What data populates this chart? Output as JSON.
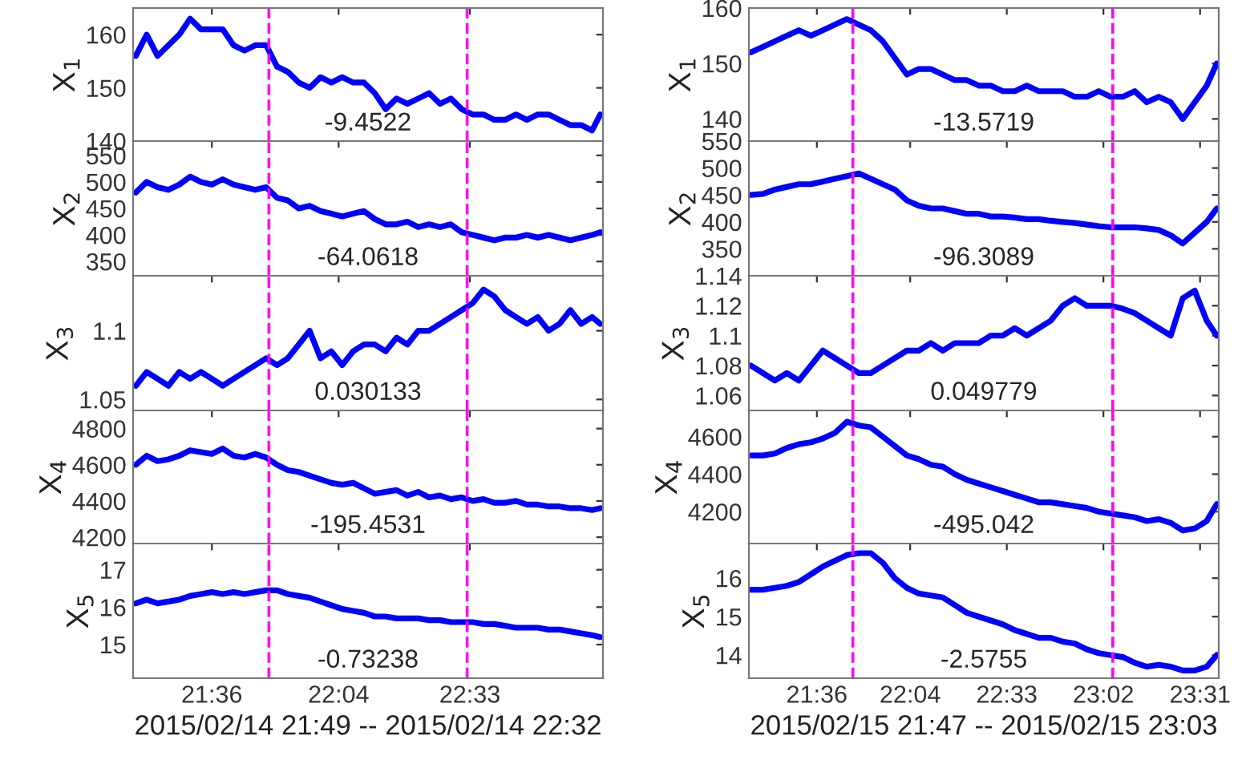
{
  "chart_data": [
    {
      "type": "line",
      "ylabel": "X$_{1}$",
      "x": [
        21.32,
        21.36,
        21.4,
        21.44,
        21.48,
        21.52,
        21.56,
        21.6,
        21.64,
        21.68,
        21.72,
        21.76,
        21.8,
        21.84,
        21.88,
        21.92,
        21.96,
        22.0,
        22.04,
        22.08,
        22.12,
        22.16,
        22.2,
        22.24,
        22.28,
        22.32,
        22.36,
        22.4,
        22.44,
        22.48,
        22.52,
        22.56,
        22.6,
        22.64,
        22.68,
        22.72,
        22.76,
        22.8,
        22.84,
        22.88,
        22.92,
        22.96,
        23.0,
        23.03
      ],
      "series": [
        {
          "color": "#0000ff",
          "values": [
            156,
            160,
            156,
            158,
            160,
            163,
            161,
            161,
            161,
            158,
            157,
            158,
            158,
            154,
            153,
            151,
            150,
            152,
            151,
            152,
            151,
            151,
            149,
            146,
            148,
            147,
            148,
            149,
            147,
            148,
            146,
            145,
            145,
            144,
            144,
            145,
            144,
            145,
            145,
            144,
            143,
            143,
            142,
            145
          ]
        }
      ],
      "xlim": [
        21.31,
        23.04
      ],
      "xticks": [
        {
          "value": 21.6,
          "label": null
        },
        {
          "value": 22.0667,
          "label": null
        },
        {
          "value": 22.55,
          "label": null
        }
      ],
      "ylim": [
        140,
        165
      ],
      "yticks": [
        140,
        150,
        160
      ],
      "tick_labels": "y",
      "line_style": "solid",
      "grid": false,
      "ref_lines": [
        {
          "axis": "x",
          "value": 21.81,
          "color": "#ff00ff",
          "line_style": "dashed"
        },
        {
          "axis": "x",
          "value": 22.54,
          "color": "#ff00ff",
          "line_style": "dashed"
        }
      ],
      "annotations": [
        "-9.4522"
      ]
    },
    {
      "type": "line",
      "ylabel": "X$_{2}$",
      "x": [
        21.32,
        21.36,
        21.4,
        21.44,
        21.48,
        21.52,
        21.56,
        21.6,
        21.64,
        21.68,
        21.72,
        21.76,
        21.8,
        21.84,
        21.88,
        21.92,
        21.96,
        22.0,
        22.04,
        22.08,
        22.12,
        22.16,
        22.2,
        22.24,
        22.28,
        22.32,
        22.36,
        22.4,
        22.44,
        22.48,
        22.52,
        22.56,
        22.6,
        22.64,
        22.68,
        22.72,
        22.76,
        22.8,
        22.84,
        22.88,
        22.92,
        22.96,
        23.0,
        23.03
      ],
      "series": [
        {
          "color": "#0000ff",
          "values": [
            480,
            500,
            490,
            485,
            495,
            510,
            500,
            495,
            505,
            495,
            490,
            485,
            490,
            470,
            465,
            450,
            455,
            445,
            440,
            435,
            440,
            445,
            430,
            420,
            420,
            425,
            415,
            420,
            415,
            420,
            405,
            400,
            395,
            390,
            395,
            395,
            400,
            395,
            400,
            395,
            390,
            395,
            400,
            405
          ]
        }
      ],
      "xlim": [
        21.31,
        23.04
      ],
      "xticks": [
        {
          "value": 21.6,
          "label": null
        },
        {
          "value": 22.0667,
          "label": null
        },
        {
          "value": 22.55,
          "label": null
        }
      ],
      "ylim": [
        323,
        577
      ],
      "yticks": [
        350,
        400,
        450,
        500,
        550
      ],
      "tick_labels": "y",
      "line_style": "solid",
      "grid": false,
      "ref_lines": [
        {
          "axis": "x",
          "value": 21.81,
          "color": "#ff00ff",
          "line_style": "dashed"
        },
        {
          "axis": "x",
          "value": 22.54,
          "color": "#ff00ff",
          "line_style": "dashed"
        }
      ],
      "annotations": [
        "-64.0618"
      ]
    },
    {
      "type": "line",
      "ylabel": "X$_{3}$",
      "x": [
        21.32,
        21.36,
        21.4,
        21.44,
        21.48,
        21.52,
        21.56,
        21.6,
        21.64,
        21.68,
        21.72,
        21.76,
        21.8,
        21.84,
        21.88,
        21.92,
        21.96,
        22.0,
        22.04,
        22.08,
        22.12,
        22.16,
        22.2,
        22.24,
        22.28,
        22.32,
        22.36,
        22.4,
        22.44,
        22.48,
        22.52,
        22.56,
        22.6,
        22.64,
        22.68,
        22.72,
        22.76,
        22.8,
        22.84,
        22.88,
        22.92,
        22.96,
        23.0,
        23.03
      ],
      "series": [
        {
          "color": "#0000ff",
          "values": [
            1.06,
            1.07,
            1.065,
            1.06,
            1.07,
            1.065,
            1.07,
            1.065,
            1.06,
            1.065,
            1.07,
            1.075,
            1.08,
            1.075,
            1.08,
            1.09,
            1.1,
            1.08,
            1.085,
            1.075,
            1.085,
            1.09,
            1.09,
            1.085,
            1.095,
            1.09,
            1.1,
            1.1,
            1.105,
            1.11,
            1.115,
            1.12,
            1.13,
            1.125,
            1.115,
            1.11,
            1.105,
            1.11,
            1.1,
            1.105,
            1.115,
            1.105,
            1.11,
            1.105
          ]
        }
      ],
      "xlim": [
        21.31,
        23.04
      ],
      "xticks": [
        {
          "value": 21.6,
          "label": null
        },
        {
          "value": 22.0667,
          "label": null
        },
        {
          "value": 22.55,
          "label": null
        }
      ],
      "ylim": [
        1.042,
        1.14
      ],
      "yticks": [
        1.05,
        1.1
      ],
      "tick_labels": "y",
      "line_style": "solid",
      "grid": false,
      "ref_lines": [
        {
          "axis": "x",
          "value": 21.81,
          "color": "#ff00ff",
          "line_style": "dashed"
        },
        {
          "axis": "x",
          "value": 22.54,
          "color": "#ff00ff",
          "line_style": "dashed"
        }
      ],
      "annotations": [
        "0.030133"
      ]
    },
    {
      "type": "line",
      "ylabel": "X$_{4}$",
      "x": [
        21.32,
        21.36,
        21.4,
        21.44,
        21.48,
        21.52,
        21.56,
        21.6,
        21.64,
        21.68,
        21.72,
        21.76,
        21.8,
        21.84,
        21.88,
        21.92,
        21.96,
        22.0,
        22.04,
        22.08,
        22.12,
        22.16,
        22.2,
        22.24,
        22.28,
        22.32,
        22.36,
        22.4,
        22.44,
        22.48,
        22.52,
        22.56,
        22.6,
        22.64,
        22.68,
        22.72,
        22.76,
        22.8,
        22.84,
        22.88,
        22.92,
        22.96,
        23.0,
        23.03
      ],
      "series": [
        {
          "color": "#0000ff",
          "values": [
            4600,
            4650,
            4620,
            4630,
            4650,
            4680,
            4670,
            4660,
            4690,
            4650,
            4640,
            4660,
            4640,
            4600,
            4570,
            4560,
            4540,
            4520,
            4500,
            4490,
            4500,
            4470,
            4440,
            4450,
            4460,
            4430,
            4450,
            4420,
            4430,
            4410,
            4420,
            4400,
            4410,
            4390,
            4390,
            4400,
            4380,
            4380,
            4370,
            4370,
            4360,
            4360,
            4350,
            4360
          ]
        }
      ],
      "xlim": [
        21.31,
        23.04
      ],
      "xticks": [
        {
          "value": 21.6,
          "label": null
        },
        {
          "value": 22.0667,
          "label": null
        },
        {
          "value": 22.55,
          "label": null
        }
      ],
      "ylim": [
        4165,
        4900
      ],
      "yticks": [
        4200,
        4400,
        4600,
        4800
      ],
      "tick_labels": "y",
      "line_style": "solid",
      "grid": false,
      "ref_lines": [
        {
          "axis": "x",
          "value": 21.81,
          "color": "#ff00ff",
          "line_style": "dashed"
        },
        {
          "axis": "x",
          "value": 22.54,
          "color": "#ff00ff",
          "line_style": "dashed"
        }
      ],
      "annotations": [
        "-195.4531"
      ]
    },
    {
      "type": "line",
      "ylabel": "X$_{5}$",
      "xlabel": "2015/02/14 21:49 -- 2015/02/14 22:32",
      "x": [
        21.32,
        21.36,
        21.4,
        21.44,
        21.48,
        21.52,
        21.56,
        21.6,
        21.64,
        21.68,
        21.72,
        21.76,
        21.8,
        21.84,
        21.88,
        21.92,
        21.96,
        22.0,
        22.04,
        22.08,
        22.12,
        22.16,
        22.2,
        22.24,
        22.28,
        22.32,
        22.36,
        22.4,
        22.44,
        22.48,
        22.52,
        22.56,
        22.6,
        22.64,
        22.68,
        22.72,
        22.76,
        22.8,
        22.84,
        22.88,
        22.92,
        22.96,
        23.0,
        23.03
      ],
      "series": [
        {
          "color": "#0000ff",
          "values": [
            16.1,
            16.2,
            16.1,
            16.15,
            16.2,
            16.3,
            16.35,
            16.4,
            16.35,
            16.4,
            16.35,
            16.4,
            16.45,
            16.45,
            16.35,
            16.3,
            16.25,
            16.15,
            16.05,
            15.95,
            15.9,
            15.85,
            15.75,
            15.75,
            15.7,
            15.7,
            15.7,
            15.65,
            15.65,
            15.6,
            15.6,
            15.6,
            15.55,
            15.55,
            15.5,
            15.45,
            15.45,
            15.45,
            15.4,
            15.4,
            15.35,
            15.3,
            15.25,
            15.2
          ]
        }
      ],
      "xlim": [
        21.31,
        23.04
      ],
      "xticks": [
        {
          "value": 21.6,
          "label": "21:36"
        },
        {
          "value": 22.0667,
          "label": "22:04"
        },
        {
          "value": 22.55,
          "label": "22:33"
        }
      ],
      "ylim": [
        14.1,
        17.7
      ],
      "yticks": [
        15,
        16,
        17
      ],
      "line_style": "solid",
      "grid": false,
      "ref_lines": [
        {
          "axis": "x",
          "value": 21.81,
          "color": "#ff00ff",
          "line_style": "dashed"
        },
        {
          "axis": "x",
          "value": 22.54,
          "color": "#ff00ff",
          "line_style": "dashed"
        }
      ],
      "annotations": [
        "-0.73238"
      ]
    },
    {
      "type": "line",
      "ylabel": "X$_{1}$",
      "x": [
        21.27,
        21.33,
        21.39,
        21.45,
        21.51,
        21.57,
        21.63,
        21.69,
        21.75,
        21.81,
        21.87,
        21.93,
        21.99,
        22.05,
        22.11,
        22.17,
        22.23,
        22.29,
        22.35,
        22.41,
        22.47,
        22.53,
        22.59,
        22.65,
        22.71,
        22.77,
        22.83,
        22.89,
        22.95,
        23.01,
        23.07,
        23.13,
        23.19,
        23.25,
        23.31,
        23.37,
        23.43,
        23.49,
        23.55,
        23.6
      ],
      "series": [
        {
          "color": "#0000ff",
          "values": [
            152,
            153,
            154,
            155,
            156,
            155,
            156,
            157,
            158,
            157,
            156,
            154,
            151,
            148,
            149,
            149,
            148,
            147,
            147,
            146,
            146,
            145,
            145,
            146,
            145,
            145,
            145,
            144,
            144,
            145,
            144,
            144,
            145,
            143,
            144,
            143,
            140,
            143,
            146,
            150
          ]
        }
      ],
      "xlim": [
        21.26,
        23.61
      ],
      "xticks": [
        {
          "value": 21.6,
          "label": null
        },
        {
          "value": 22.0667,
          "label": null
        },
        {
          "value": 22.55,
          "label": null
        },
        {
          "value": 23.0333,
          "label": null
        },
        {
          "value": 23.5167,
          "label": null
        }
      ],
      "ylim": [
        136,
        160
      ],
      "yticks": [
        140,
        150,
        160
      ],
      "tick_labels": "y",
      "line_style": "solid",
      "grid": false,
      "ref_lines": [
        {
          "axis": "x",
          "value": 21.78,
          "color": "#ff00ff",
          "line_style": "dashed"
        },
        {
          "axis": "x",
          "value": 23.08,
          "color": "#ff00ff",
          "line_style": "dashed"
        }
      ],
      "annotations": [
        "-13.5719"
      ]
    },
    {
      "type": "line",
      "ylabel": "X$_{2}$",
      "x": [
        21.27,
        21.33,
        21.39,
        21.45,
        21.51,
        21.57,
        21.63,
        21.69,
        21.75,
        21.81,
        21.87,
        21.93,
        21.99,
        22.05,
        22.11,
        22.17,
        22.23,
        22.29,
        22.35,
        22.41,
        22.47,
        22.53,
        22.59,
        22.65,
        22.71,
        22.77,
        22.83,
        22.89,
        22.95,
        23.01,
        23.07,
        23.13,
        23.19,
        23.25,
        23.31,
        23.37,
        23.43,
        23.49,
        23.55,
        23.6
      ],
      "series": [
        {
          "color": "#0000ff",
          "values": [
            450,
            452,
            460,
            465,
            470,
            470,
            475,
            480,
            485,
            490,
            480,
            470,
            460,
            440,
            430,
            425,
            425,
            420,
            415,
            415,
            410,
            410,
            408,
            405,
            405,
            402,
            400,
            398,
            395,
            392,
            390,
            390,
            390,
            388,
            385,
            375,
            360,
            380,
            400,
            425
          ]
        }
      ],
      "xlim": [
        21.26,
        23.61
      ],
      "xticks": [
        {
          "value": 21.6,
          "label": null
        },
        {
          "value": 22.0667,
          "label": null
        },
        {
          "value": 22.55,
          "label": null
        },
        {
          "value": 23.0333,
          "label": null
        },
        {
          "value": 23.5167,
          "label": null
        }
      ],
      "ylim": [
        300,
        550
      ],
      "yticks": [
        350,
        400,
        450,
        500,
        550
      ],
      "tick_labels": "y",
      "line_style": "solid",
      "grid": false,
      "ref_lines": [
        {
          "axis": "x",
          "value": 21.78,
          "color": "#ff00ff",
          "line_style": "dashed"
        },
        {
          "axis": "x",
          "value": 23.08,
          "color": "#ff00ff",
          "line_style": "dashed"
        }
      ],
      "annotations": [
        "-96.3089"
      ]
    },
    {
      "type": "line",
      "ylabel": "X$_{3}$",
      "x": [
        21.27,
        21.33,
        21.39,
        21.45,
        21.51,
        21.57,
        21.63,
        21.69,
        21.75,
        21.81,
        21.87,
        21.93,
        21.99,
        22.05,
        22.11,
        22.17,
        22.23,
        22.29,
        22.35,
        22.41,
        22.47,
        22.53,
        22.59,
        22.65,
        22.71,
        22.77,
        22.83,
        22.89,
        22.95,
        23.01,
        23.07,
        23.13,
        23.19,
        23.25,
        23.31,
        23.37,
        23.43,
        23.49,
        23.55,
        23.6
      ],
      "series": [
        {
          "color": "#0000ff",
          "values": [
            1.08,
            1.075,
            1.07,
            1.075,
            1.07,
            1.08,
            1.09,
            1.085,
            1.08,
            1.075,
            1.075,
            1.08,
            1.085,
            1.09,
            1.09,
            1.095,
            1.09,
            1.095,
            1.095,
            1.095,
            1.1,
            1.1,
            1.105,
            1.1,
            1.105,
            1.11,
            1.12,
            1.125,
            1.12,
            1.12,
            1.12,
            1.118,
            1.115,
            1.11,
            1.105,
            1.1,
            1.125,
            1.13,
            1.11,
            1.1
          ]
        }
      ],
      "xlim": [
        21.26,
        23.61
      ],
      "xticks": [
        {
          "value": 21.6,
          "label": null
        },
        {
          "value": 22.0667,
          "label": null
        },
        {
          "value": 22.55,
          "label": null
        },
        {
          "value": 23.0333,
          "label": null
        },
        {
          "value": 23.5167,
          "label": null
        }
      ],
      "ylim": [
        1.05,
        1.14
      ],
      "yticks": [
        1.06,
        1.08,
        1.1,
        1.12,
        1.14
      ],
      "tick_labels": "y",
      "line_style": "solid",
      "grid": false,
      "ref_lines": [
        {
          "axis": "x",
          "value": 21.78,
          "color": "#ff00ff",
          "line_style": "dashed"
        },
        {
          "axis": "x",
          "value": 23.08,
          "color": "#ff00ff",
          "line_style": "dashed"
        }
      ],
      "annotations": [
        "0.049779"
      ]
    },
    {
      "type": "line",
      "ylabel": "X$_{4}$",
      "x": [
        21.27,
        21.33,
        21.39,
        21.45,
        21.51,
        21.57,
        21.63,
        21.69,
        21.75,
        21.81,
        21.87,
        21.93,
        21.99,
        22.05,
        22.11,
        22.17,
        22.23,
        22.29,
        22.35,
        22.41,
        22.47,
        22.53,
        22.59,
        22.65,
        22.71,
        22.77,
        22.83,
        22.89,
        22.95,
        23.01,
        23.07,
        23.13,
        23.19,
        23.25,
        23.31,
        23.37,
        23.43,
        23.49,
        23.55,
        23.6
      ],
      "series": [
        {
          "color": "#0000ff",
          "values": [
            4500,
            4500,
            4510,
            4540,
            4560,
            4570,
            4590,
            4620,
            4680,
            4660,
            4650,
            4600,
            4550,
            4500,
            4480,
            4450,
            4440,
            4400,
            4370,
            4350,
            4330,
            4310,
            4290,
            4270,
            4250,
            4250,
            4240,
            4230,
            4220,
            4200,
            4190,
            4180,
            4170,
            4150,
            4160,
            4140,
            4100,
            4110,
            4150,
            4240
          ]
        }
      ],
      "xlim": [
        21.26,
        23.61
      ],
      "xticks": [
        {
          "value": 21.6,
          "label": null
        },
        {
          "value": 22.0667,
          "label": null
        },
        {
          "value": 22.55,
          "label": null
        },
        {
          "value": 23.0333,
          "label": null
        },
        {
          "value": 23.5167,
          "label": null
        }
      ],
      "ylim": [
        4030,
        4740
      ],
      "yticks": [
        4200,
        4400,
        4600
      ],
      "tick_labels": "y",
      "line_style": "solid",
      "grid": false,
      "ref_lines": [
        {
          "axis": "x",
          "value": 21.78,
          "color": "#ff00ff",
          "line_style": "dashed"
        },
        {
          "axis": "x",
          "value": 23.08,
          "color": "#ff00ff",
          "line_style": "dashed"
        }
      ],
      "annotations": [
        "-495.042"
      ]
    },
    {
      "type": "line",
      "ylabel": "X$_{5}$",
      "xlabel": "2015/02/15 21:47 -- 2015/02/15 23:03",
      "x": [
        21.27,
        21.33,
        21.39,
        21.45,
        21.51,
        21.57,
        21.63,
        21.69,
        21.75,
        21.81,
        21.87,
        21.93,
        21.99,
        22.05,
        22.11,
        22.17,
        22.23,
        22.29,
        22.35,
        22.41,
        22.47,
        22.53,
        22.59,
        22.65,
        22.71,
        22.77,
        22.83,
        22.89,
        22.95,
        23.01,
        23.07,
        23.13,
        23.19,
        23.25,
        23.31,
        23.37,
        23.43,
        23.49,
        23.55,
        23.6
      ],
      "series": [
        {
          "color": "#0000ff",
          "values": [
            15.7,
            15.7,
            15.75,
            15.8,
            15.9,
            16.1,
            16.3,
            16.45,
            16.6,
            16.65,
            16.65,
            16.4,
            16.0,
            15.75,
            15.6,
            15.55,
            15.5,
            15.3,
            15.1,
            15.0,
            14.9,
            14.8,
            14.65,
            14.55,
            14.45,
            14.45,
            14.35,
            14.3,
            14.15,
            14.05,
            14.0,
            13.95,
            13.8,
            13.7,
            13.75,
            13.7,
            13.6,
            13.6,
            13.7,
            14.0
          ]
        }
      ],
      "xlim": [
        21.26,
        23.61
      ],
      "xticks": [
        {
          "value": 21.6,
          "label": "21:36"
        },
        {
          "value": 22.0667,
          "label": "22:04"
        },
        {
          "value": 22.55,
          "label": "22:33"
        },
        {
          "value": 23.0333,
          "label": "23:02"
        },
        {
          "value": 23.5167,
          "label": "23:31"
        }
      ],
      "ylim": [
        13.4,
        16.9
      ],
      "yticks": [
        14,
        15,
        16
      ],
      "line_style": "solid",
      "grid": false,
      "ref_lines": [
        {
          "axis": "x",
          "value": 21.78,
          "color": "#ff00ff",
          "line_style": "dashed"
        },
        {
          "axis": "x",
          "value": 23.08,
          "color": "#ff00ff",
          "line_style": "dashed"
        }
      ],
      "annotations": [
        "-2.5755"
      ]
    }
  ]
}
